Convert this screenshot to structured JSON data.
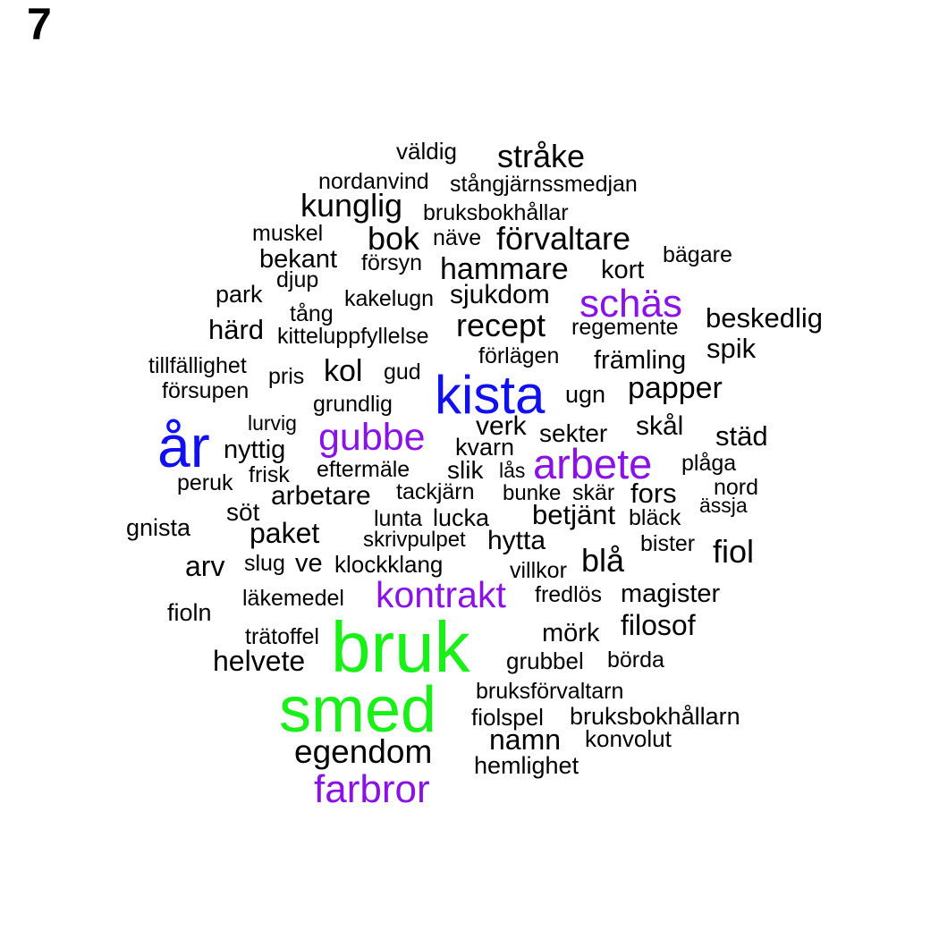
{
  "panel_label": "7",
  "colors": {
    "black": "#000000",
    "purple": "#8a12e6",
    "blue": "#1010f0",
    "green": "#18f018"
  },
  "words": [
    {
      "text": "väldig",
      "color": "black"
    },
    {
      "text": "stråke",
      "color": "black"
    },
    {
      "text": "nordanvind",
      "color": "black"
    },
    {
      "text": "stångjärnssmedjan",
      "color": "black"
    },
    {
      "text": "kunglig",
      "color": "black"
    },
    {
      "text": "bruksbokhållar",
      "color": "black"
    },
    {
      "text": "muskel",
      "color": "black"
    },
    {
      "text": "bok",
      "color": "black"
    },
    {
      "text": "näve",
      "color": "black"
    },
    {
      "text": "förvaltare",
      "color": "black"
    },
    {
      "text": "bägare",
      "color": "black"
    },
    {
      "text": "bekant",
      "color": "black"
    },
    {
      "text": "försyn",
      "color": "black"
    },
    {
      "text": "hammare",
      "color": "black"
    },
    {
      "text": "kort",
      "color": "black"
    },
    {
      "text": "djup",
      "color": "black"
    },
    {
      "text": "park",
      "color": "black"
    },
    {
      "text": "kakelugn",
      "color": "black"
    },
    {
      "text": "sjukdom",
      "color": "black"
    },
    {
      "text": "schäs",
      "color": "purple"
    },
    {
      "text": "tång",
      "color": "black"
    },
    {
      "text": "beskedlig",
      "color": "black"
    },
    {
      "text": "härd",
      "color": "black"
    },
    {
      "text": "recept",
      "color": "black"
    },
    {
      "text": "regemente",
      "color": "black"
    },
    {
      "text": "kitteluppfyllelse",
      "color": "black"
    },
    {
      "text": "spik",
      "color": "black"
    },
    {
      "text": "förlägen",
      "color": "black"
    },
    {
      "text": "tillfällighet",
      "color": "black"
    },
    {
      "text": "främling",
      "color": "black"
    },
    {
      "text": "kol",
      "color": "black"
    },
    {
      "text": "gud",
      "color": "black"
    },
    {
      "text": "pris",
      "color": "black"
    },
    {
      "text": "kista",
      "color": "blue"
    },
    {
      "text": "försupen",
      "color": "black"
    },
    {
      "text": "papper",
      "color": "black"
    },
    {
      "text": "ugn",
      "color": "black"
    },
    {
      "text": "grundlig",
      "color": "black"
    },
    {
      "text": "lurvig",
      "color": "black"
    },
    {
      "text": "år",
      "color": "blue"
    },
    {
      "text": "verk",
      "color": "black"
    },
    {
      "text": "skål",
      "color": "black"
    },
    {
      "text": "gubbe",
      "color": "purple"
    },
    {
      "text": "sekter",
      "color": "black"
    },
    {
      "text": "städ",
      "color": "black"
    },
    {
      "text": "nyttig",
      "color": "black"
    },
    {
      "text": "kvarn",
      "color": "black"
    },
    {
      "text": "arbete",
      "color": "purple"
    },
    {
      "text": "plåga",
      "color": "black"
    },
    {
      "text": "frisk",
      "color": "black"
    },
    {
      "text": "eftermäle",
      "color": "black"
    },
    {
      "text": "slik",
      "color": "black"
    },
    {
      "text": "lås",
      "color": "black"
    },
    {
      "text": "peruk",
      "color": "black"
    },
    {
      "text": "nord",
      "color": "black"
    },
    {
      "text": "arbetare",
      "color": "black"
    },
    {
      "text": "tackjärn",
      "color": "black"
    },
    {
      "text": "bunke",
      "color": "black"
    },
    {
      "text": "skär",
      "color": "black"
    },
    {
      "text": "fors",
      "color": "black"
    },
    {
      "text": "ässja",
      "color": "black"
    },
    {
      "text": "söt",
      "color": "black"
    },
    {
      "text": "betjänt",
      "color": "black"
    },
    {
      "text": "lunta",
      "color": "black"
    },
    {
      "text": "lucka",
      "color": "black"
    },
    {
      "text": "bläck",
      "color": "black"
    },
    {
      "text": "gnista",
      "color": "black"
    },
    {
      "text": "paket",
      "color": "black"
    },
    {
      "text": "skrivpulpet",
      "color": "black"
    },
    {
      "text": "hytta",
      "color": "black"
    },
    {
      "text": "bister",
      "color": "black"
    },
    {
      "text": "fiol",
      "color": "black"
    },
    {
      "text": "arv",
      "color": "black"
    },
    {
      "text": "slug",
      "color": "black"
    },
    {
      "text": "ve",
      "color": "black"
    },
    {
      "text": "klockklang",
      "color": "black"
    },
    {
      "text": "villkor",
      "color": "black"
    },
    {
      "text": "blå",
      "color": "black"
    },
    {
      "text": "kontrakt",
      "color": "purple"
    },
    {
      "text": "fredlös",
      "color": "black"
    },
    {
      "text": "magister",
      "color": "black"
    },
    {
      "text": "läkemedel",
      "color": "black"
    },
    {
      "text": "fioln",
      "color": "black"
    },
    {
      "text": "filosof",
      "color": "black"
    },
    {
      "text": "bruk",
      "color": "green"
    },
    {
      "text": "mörk",
      "color": "black"
    },
    {
      "text": "trätoffel",
      "color": "black"
    },
    {
      "text": "helvete",
      "color": "black"
    },
    {
      "text": "grubbel",
      "color": "black"
    },
    {
      "text": "börda",
      "color": "black"
    },
    {
      "text": "bruksförvaltarn",
      "color": "black"
    },
    {
      "text": "smed",
      "color": "green"
    },
    {
      "text": "fiolspel",
      "color": "black"
    },
    {
      "text": "bruksbokhållarn",
      "color": "black"
    },
    {
      "text": "namn",
      "color": "black"
    },
    {
      "text": "konvolut",
      "color": "black"
    },
    {
      "text": "egendom",
      "color": "black"
    },
    {
      "text": "hemlighet",
      "color": "black"
    },
    {
      "text": "farbror",
      "color": "purple"
    }
  ]
}
